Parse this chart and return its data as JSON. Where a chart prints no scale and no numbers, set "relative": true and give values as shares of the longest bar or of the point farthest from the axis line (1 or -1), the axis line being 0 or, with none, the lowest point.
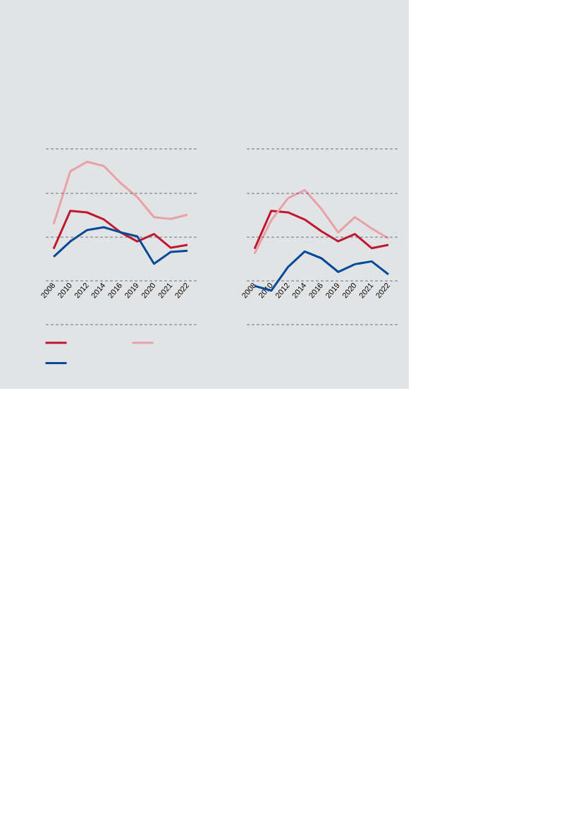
{
  "chart_data": [
    {
      "type": "line",
      "relative": true,
      "categories": [
        "2008",
        "2010",
        "2012",
        "2014",
        "2016",
        "2019",
        "2020",
        "2021",
        "2022"
      ],
      "series": [
        {
          "color": "#c0172f",
          "values": [
            0.465,
            0.699,
            0.689,
            0.646,
            0.567,
            0.511,
            0.556,
            0.472,
            0.49
          ]
        },
        {
          "color": "#e8a1a8",
          "values": [
            0.617,
            0.942,
            1,
            0.974,
            0.87,
            0.783,
            0.66,
            0.649,
            0.675
          ]
        },
        {
          "color": "#004a98",
          "values": [
            0.417,
            0.511,
            0.581,
            0.598,
            0.567,
            0.542,
            0.374,
            0.446,
            0.454
          ]
        }
      ],
      "ref_lines": [
        {
          "axis": "y",
          "value": 0,
          "color": "#555555",
          "line_style": "dashed"
        },
        {
          "axis": "y",
          "value": 0.269,
          "color": "#555555",
          "line_style": "dashed"
        },
        {
          "axis": "y",
          "value": 0.537,
          "color": "#555555",
          "line_style": "dashed"
        },
        {
          "axis": "y",
          "value": 0.806,
          "color": "#555555",
          "line_style": "dashed"
        },
        {
          "axis": "y",
          "value": 1.079,
          "color": "#555555",
          "line_style": "dashed"
        }
      ]
    },
    {
      "type": "line",
      "relative": true,
      "categories": [
        "2008",
        "2010",
        "2012",
        "2014",
        "2016",
        "2019",
        "2020",
        "2021",
        "2022"
      ],
      "series": [
        {
          "color": "#c0172f",
          "values": [
            0.563,
            0.846,
            0.834,
            0.781,
            0.694,
            0.619,
            0.673,
            0.568,
            0.593
          ]
        },
        {
          "color": "#e8a1a8",
          "values": [
            0.528,
            0.776,
            0.939,
            1,
            0.86,
            0.685,
            0.799,
            0.715,
            0.641
          ]
        },
        {
          "color": "#004a98",
          "values": [
            0.288,
            0.253,
            0.428,
            0.544,
            0.493,
            0.392,
            0.449,
            0.47,
            0.374
          ]
        }
      ],
      "ref_lines": [
        {
          "axis": "y",
          "value": 0,
          "color": "#555555",
          "line_style": "dashed"
        },
        {
          "axis": "y",
          "value": 0.325,
          "color": "#555555",
          "line_style": "dashed"
        },
        {
          "axis": "y",
          "value": 0.65,
          "color": "#555555",
          "line_style": "dashed"
        },
        {
          "axis": "y",
          "value": 0.975,
          "color": "#555555",
          "line_style": "dashed"
        },
        {
          "axis": "y",
          "value": 1.306,
          "color": "#555555",
          "line_style": "dashed"
        }
      ]
    }
  ]
}
